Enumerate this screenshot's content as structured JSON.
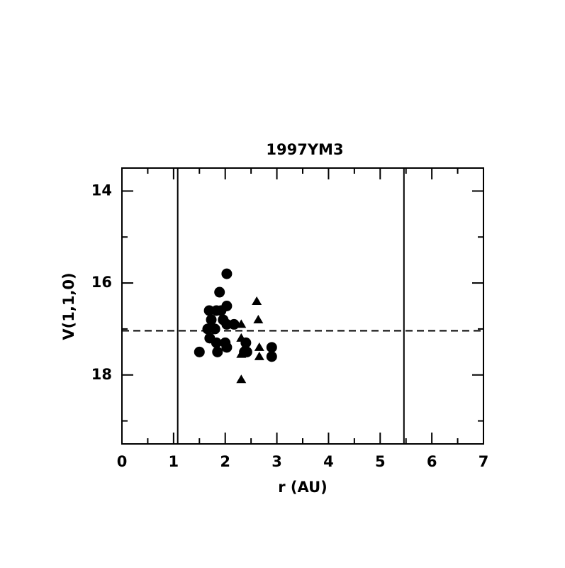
{
  "chart_data": {
    "type": "scatter",
    "title": "1997YM3",
    "x_label": "r (AU)",
    "y_label": "V(1,1,0)",
    "xlim": [
      0,
      7
    ],
    "ylim": [
      13.5,
      19.5
    ],
    "y_inverted": true,
    "xticks": [
      0,
      1,
      2,
      3,
      4,
      5,
      6,
      7
    ],
    "x_minor_ticks": [
      0.5,
      1.5,
      2.5,
      3.5,
      4.5,
      5.5,
      6.5
    ],
    "yticks": [
      14,
      16,
      18
    ],
    "y_minor_ticks": [
      15,
      17,
      19
    ],
    "vlines": [
      1.08,
      5.46
    ],
    "hline": 17.04,
    "series": [
      {
        "marker": "circle",
        "color": "#000000",
        "x": [
          1.5,
          2.03,
          1.89,
          2.03,
          1.69,
          1.83,
          1.92,
          1.73,
          1.96,
          2.17,
          1.66,
          1.8,
          2.03,
          1.7,
          1.83,
          2.0,
          2.03,
          1.85,
          2.4,
          2.42,
          2.9,
          2.9,
          2.37
        ],
        "values": [
          17.5,
          15.8,
          16.2,
          16.5,
          16.6,
          16.6,
          16.6,
          16.8,
          16.8,
          16.9,
          17.0,
          17.0,
          16.9,
          17.2,
          17.3,
          17.3,
          17.4,
          17.5,
          17.3,
          17.5,
          17.4,
          17.6,
          17.5
        ]
      },
      {
        "marker": "triangle",
        "color": "#000000",
        "x": [
          2.31,
          2.31,
          2.31,
          2.31,
          2.61,
          2.64,
          2.66,
          2.66,
          2.37
        ],
        "values": [
          16.9,
          17.2,
          17.55,
          18.1,
          16.4,
          16.8,
          17.4,
          17.6,
          17.4
        ]
      }
    ]
  }
}
